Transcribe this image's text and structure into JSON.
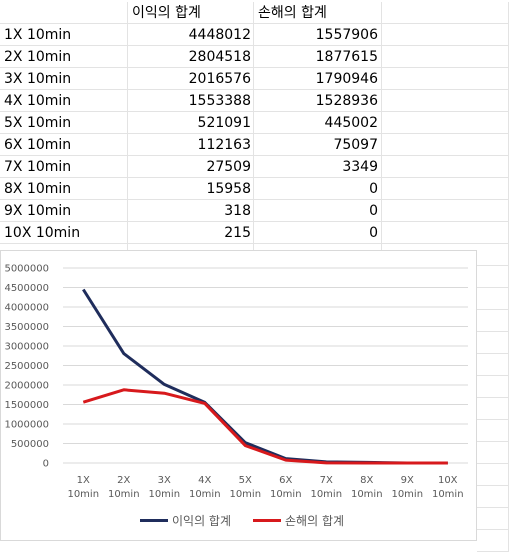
{
  "table": {
    "headers": [
      "",
      "이익의 합계",
      "손해의 합계"
    ],
    "rows": [
      [
        "1X 10min",
        "4448012",
        "1557906"
      ],
      [
        "2X 10min",
        "2804518",
        "1877615"
      ],
      [
        "3X 10min",
        "2016576",
        "1790946"
      ],
      [
        "4X 10min",
        "1553388",
        "1528936"
      ],
      [
        "5X 10min",
        "521091",
        "445002"
      ],
      [
        "6X 10min",
        "112163",
        "75097"
      ],
      [
        "7X 10min",
        "27509",
        "3349"
      ],
      [
        "8X 10min",
        "15958",
        "0"
      ],
      [
        "9X 10min",
        "318",
        "0"
      ],
      [
        "10X 10min",
        "215",
        "0"
      ]
    ]
  },
  "chart_data": {
    "type": "line",
    "categories": [
      [
        "1X",
        "10min"
      ],
      [
        "2X",
        "10min"
      ],
      [
        "3X",
        "10min"
      ],
      [
        "4X",
        "10min"
      ],
      [
        "5X",
        "10min"
      ],
      [
        "6X",
        "10min"
      ],
      [
        "7X",
        "10min"
      ],
      [
        "8X",
        "10min"
      ],
      [
        "9X",
        "10min"
      ],
      [
        "10X",
        "10min"
      ]
    ],
    "series": [
      {
        "name": "이익의 합계",
        "color": "#1f2d5c",
        "values": [
          4448012,
          2804518,
          2016576,
          1553388,
          521091,
          112163,
          27509,
          15958,
          318,
          215
        ]
      },
      {
        "name": "손해의 합계",
        "color": "#d7191c",
        "values": [
          1557906,
          1877615,
          1790946,
          1528936,
          445002,
          75097,
          3349,
          0,
          0,
          0
        ]
      }
    ],
    "ylim": [
      0,
      5000000
    ],
    "yticks": [
      "5000000",
      "4500000",
      "4000000",
      "3500000",
      "3000000",
      "2500000",
      "2000000",
      "1500000",
      "1000000",
      "500000",
      "0"
    ],
    "grid": true,
    "legend_position": "bottom"
  }
}
